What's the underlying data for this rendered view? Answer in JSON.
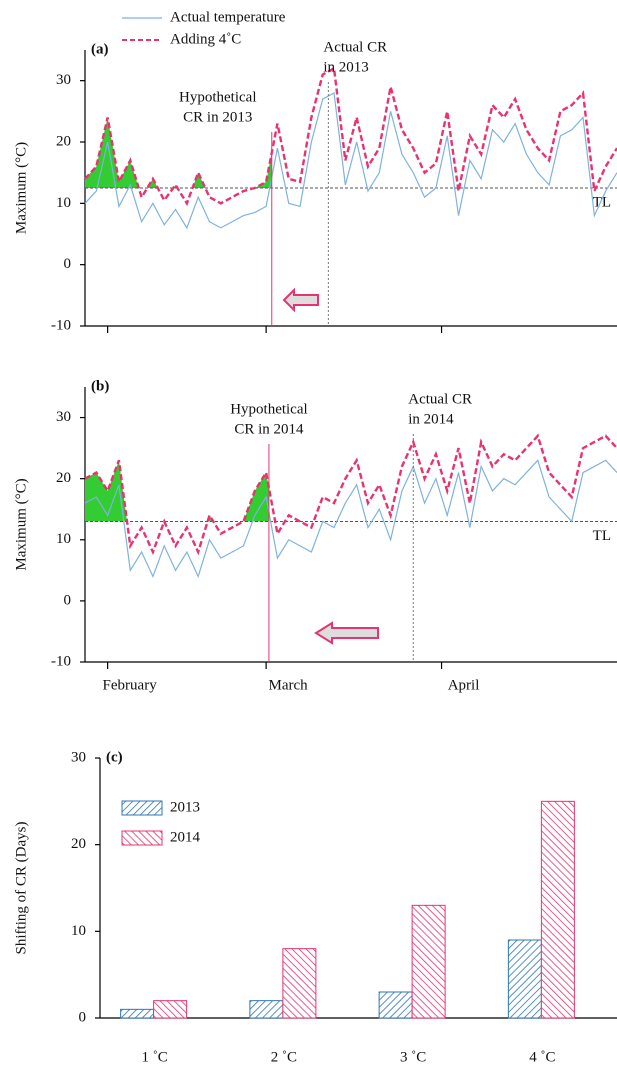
{
  "chart_data": [
    {
      "type": "line",
      "panel_label": "(a)",
      "y_label": "Maximum  (°C)",
      "xlim": [
        -4,
        90
      ],
      "xticks": [
        0,
        28,
        59
      ],
      "ylim": [
        -10,
        35
      ],
      "yticks": [
        -10,
        0,
        10,
        20,
        30
      ],
      "legend": true,
      "x": [
        -4,
        -2,
        0,
        2,
        4,
        6,
        8,
        10,
        12,
        14,
        16,
        18,
        20,
        22,
        24,
        26,
        28,
        30,
        32,
        34,
        36,
        38,
        40,
        42,
        44,
        46,
        48,
        50,
        52,
        54,
        56,
        58,
        60,
        62,
        64,
        66,
        68,
        70,
        72,
        74,
        76,
        78,
        80,
        82,
        84,
        86,
        88,
        90
      ],
      "series": [
        {
          "name": "Actual  temperature",
          "color": "#7fb2e0",
          "dash": false,
          "values": [
            10,
            12,
            20,
            9.5,
            13,
            7,
            10,
            6.5,
            9,
            6,
            11,
            7,
            6,
            7,
            8,
            8.5,
            9.5,
            19,
            10,
            9.5,
            20,
            27,
            28,
            13,
            20,
            12,
            15,
            25,
            18,
            15,
            11,
            12.5,
            21,
            8,
            17,
            14,
            22,
            20,
            23,
            18,
            15,
            13,
            21,
            22,
            24,
            8,
            12,
            15
          ]
        },
        {
          "name": "Adding  4˚C",
          "color": "#e8336e",
          "dash": true,
          "values": [
            14,
            16,
            24,
            13.5,
            17,
            11,
            14,
            10.5,
            13,
            10,
            15,
            11,
            10,
            11,
            12,
            12.5,
            13.5,
            23,
            14,
            13.5,
            24,
            31,
            32,
            17,
            24,
            16,
            19,
            29,
            22,
            19,
            15,
            16.5,
            25,
            12,
            21,
            18,
            26,
            24,
            27,
            22,
            19,
            17,
            25,
            26,
            28,
            12,
            16,
            19
          ]
        }
      ],
      "threshold": {
        "label": "TL",
        "value": 12.5
      },
      "fill_color": "#33cc33",
      "markers": [
        {
          "lines": [
            "Hypothetical",
            "CR in 2013"
          ],
          "x": 29,
          "color": "#e8336e"
        },
        {
          "lines": [
            "Actual  CR",
            "in 2013"
          ],
          "x": 39,
          "color": "#777777"
        }
      ]
    },
    {
      "type": "line",
      "panel_label": "(b)",
      "y_label": "Maximum  (°C)",
      "xlim": [
        -4,
        90
      ],
      "xticks": [
        {
          "value": 0,
          "label": "February"
        },
        {
          "value": 28,
          "label": "March"
        },
        {
          "value": 59,
          "label": "April"
        }
      ],
      "ylim": [
        -10,
        35
      ],
      "yticks": [
        -10,
        0,
        10,
        20,
        30
      ],
      "x": [
        -4,
        -2,
        0,
        2,
        4,
        6,
        8,
        10,
        12,
        14,
        16,
        18,
        20,
        22,
        24,
        26,
        28,
        30,
        32,
        34,
        36,
        38,
        40,
        42,
        44,
        46,
        48,
        50,
        52,
        54,
        56,
        58,
        60,
        62,
        64,
        66,
        68,
        70,
        72,
        74,
        76,
        78,
        80,
        82,
        84,
        86,
        88,
        90
      ],
      "series": [
        {
          "color": "#7fb2e0",
          "dash": false,
          "values": [
            16,
            17,
            14,
            19,
            5,
            8,
            4,
            9,
            5,
            8,
            4,
            10,
            7,
            8,
            9,
            14,
            17,
            7,
            10,
            9,
            8,
            13,
            12,
            16,
            19,
            12,
            15,
            10,
            18,
            22,
            16,
            20,
            14,
            21,
            12,
            22,
            18,
            20,
            19,
            21,
            23,
            17,
            15,
            13,
            21,
            22,
            23,
            21
          ]
        },
        {
          "color": "#e8336e",
          "dash": true,
          "values": [
            20,
            21,
            18,
            23,
            9,
            12,
            8,
            13,
            9,
            12,
            8,
            14,
            11,
            12,
            13,
            18,
            21,
            11,
            14,
            13,
            12,
            17,
            16,
            20,
            23,
            16,
            19,
            14,
            22,
            26,
            20,
            24,
            18,
            25,
            16,
            26,
            22,
            24,
            23,
            25,
            27,
            21,
            19,
            17,
            25,
            26,
            27,
            25
          ]
        }
      ],
      "threshold": {
        "label": "TL",
        "value": 13
      },
      "fill_color": "#33cc33",
      "markers": [
        {
          "lines": [
            "Hypothetical",
            "CR in 2014"
          ],
          "x": 28.5,
          "color": "#e8336e"
        },
        {
          "lines": [
            "Actual  CR",
            "in 2014"
          ],
          "x": 54,
          "color": "#777777"
        }
      ]
    },
    {
      "type": "bar",
      "panel_label": "(c)",
      "y_label": "Shifting  of CR (Days)",
      "categories": [
        "1 ˚C",
        "2 ˚C",
        "3 ˚C",
        "4 ˚C"
      ],
      "ylim": [
        0,
        30
      ],
      "yticks": [
        0,
        10,
        20,
        30
      ],
      "legend": "upper left",
      "series": [
        {
          "name": "2013",
          "color": "#2e75b6",
          "values": [
            1,
            2,
            3,
            9
          ]
        },
        {
          "name": "2014",
          "color": "#e8336e",
          "values": [
            2,
            8,
            13,
            25
          ]
        }
      ]
    }
  ]
}
